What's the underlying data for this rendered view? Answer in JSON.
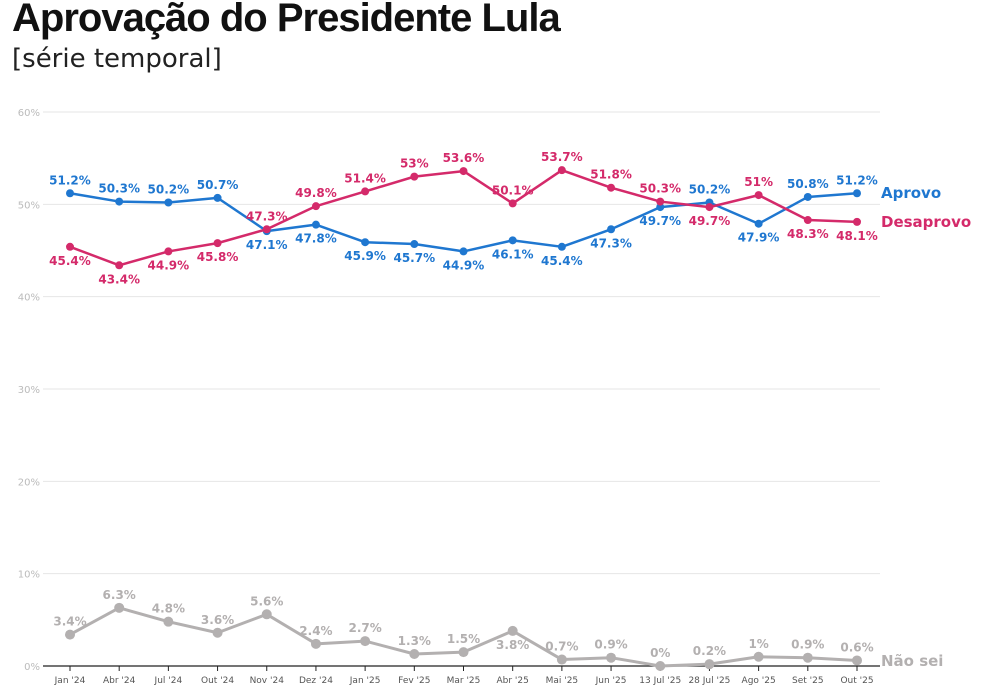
{
  "title": "Aprovação do Presidente Lula",
  "subtitle": "[série temporal]",
  "chart_data": {
    "type": "line",
    "title": "Aprovação do Presidente Lula",
    "subtitle": "[série temporal]",
    "categories": [
      "Jan '24",
      "Abr '24",
      "Jul '24",
      "Out '24",
      "Nov '24",
      "Dez '24",
      "Jan '25",
      "Fev '25",
      "Mar '25",
      "Abr '25",
      "Mai '25",
      "Jun '25",
      "13 Jul '25",
      "28 Jul '25",
      "Ago '25",
      "Set '25",
      "Out '25"
    ],
    "ylim": [
      0,
      60
    ],
    "yticks": [
      "0%",
      "10%",
      "20%",
      "30%",
      "40%",
      "50%",
      "60%"
    ],
    "grid": true,
    "legend": "direct labels at right end",
    "series": [
      {
        "name": "Aprovo",
        "color": "#1f77d0",
        "values": [
          51.2,
          50.3,
          50.2,
          50.7,
          47.1,
          47.8,
          45.9,
          45.7,
          44.9,
          46.1,
          45.4,
          47.3,
          49.7,
          50.2,
          47.9,
          50.8,
          51.2
        ],
        "labels": [
          "51.2%",
          "50.3%",
          "50.2%",
          "50.7%",
          "47.1%",
          "47.8%",
          "45.9%",
          "45.7%",
          "44.9%",
          "46.1%",
          "45.4%",
          "47.3%",
          "49.7%",
          "50.2%",
          "47.9%",
          "50.8%",
          "51.2%"
        ]
      },
      {
        "name": "Desaprovo",
        "color": "#d42a6a",
        "values": [
          45.4,
          43.4,
          44.9,
          45.8,
          47.3,
          49.8,
          51.4,
          53,
          53.6,
          50.1,
          53.7,
          51.8,
          50.3,
          49.7,
          51,
          48.3,
          48.1
        ],
        "labels": [
          "45.4%",
          "43.4%",
          "44.9%",
          "45.8%",
          "47.3%",
          "49.8%",
          "51.4%",
          "53%",
          "53.6%",
          "50.1%",
          "53.7%",
          "51.8%",
          "50.3%",
          "49.7%",
          "51%",
          "48.3%",
          "48.1%"
        ]
      },
      {
        "name": "Não sei",
        "color": "#b3b0b0",
        "values": [
          3.4,
          6.3,
          4.8,
          3.6,
          5.6,
          2.4,
          2.7,
          1.3,
          1.5,
          3.8,
          0.7,
          0.9,
          0,
          0.2,
          1,
          0.9,
          0.6
        ],
        "labels": [
          "3.4%",
          "6.3%",
          "4.8%",
          "3.6%",
          "5.6%",
          "2.4%",
          "2.7%",
          "1.3%",
          "1.5%",
          "3.8%",
          "0.7%",
          "0.9%",
          "0%",
          "0.2%",
          "1%",
          "0.9%",
          "0.6%"
        ]
      }
    ]
  }
}
